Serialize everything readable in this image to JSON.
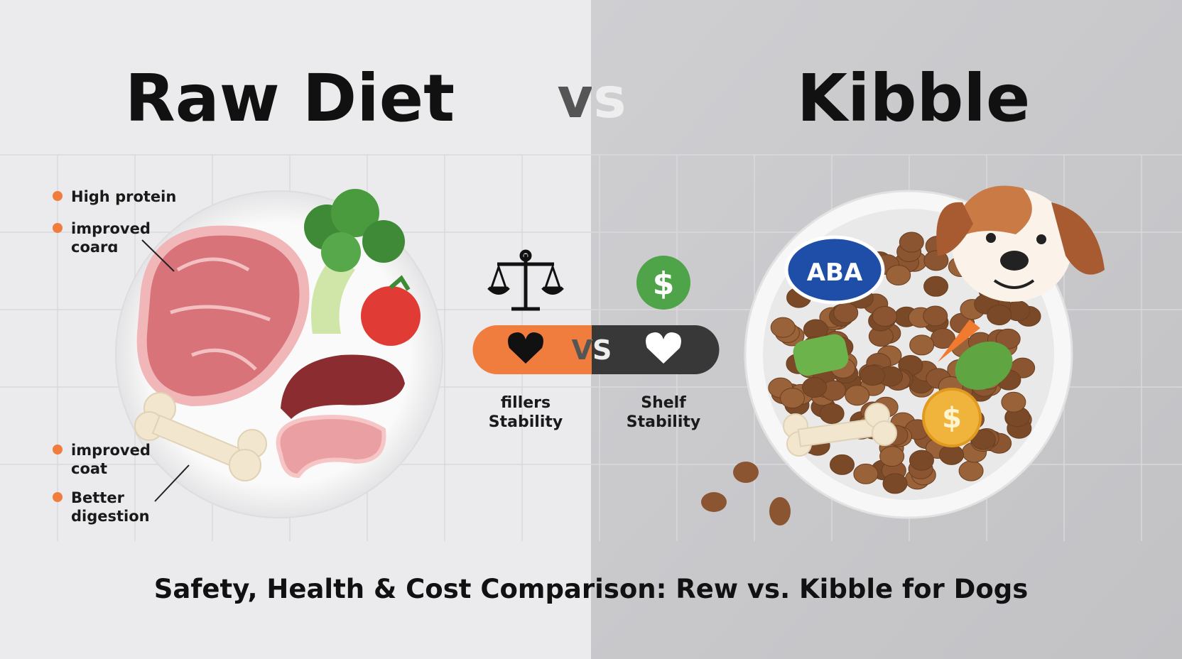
{
  "header": {
    "left_title": "Raw Diet",
    "vs": "vs",
    "right_title": "Kibble"
  },
  "raw_benefits": [
    {
      "lines": [
        "High protein"
      ]
    },
    {
      "lines": [
        "improved",
        "coarɑ"
      ]
    },
    {
      "lines": [
        "improved",
        "coat"
      ]
    },
    {
      "lines": [
        "Better",
        "digestion"
      ]
    }
  ],
  "middle": {
    "dollar": "$",
    "vs": "VS",
    "left_label": [
      "fillers",
      "Stability"
    ],
    "right_label": [
      "Shelf",
      "Stability"
    ]
  },
  "kibble": {
    "badge": "ABA",
    "coin": "$"
  },
  "footer": {
    "title": "Safety, Health & Cost Comparison: Rew vs. Kibble for Dogs"
  }
}
